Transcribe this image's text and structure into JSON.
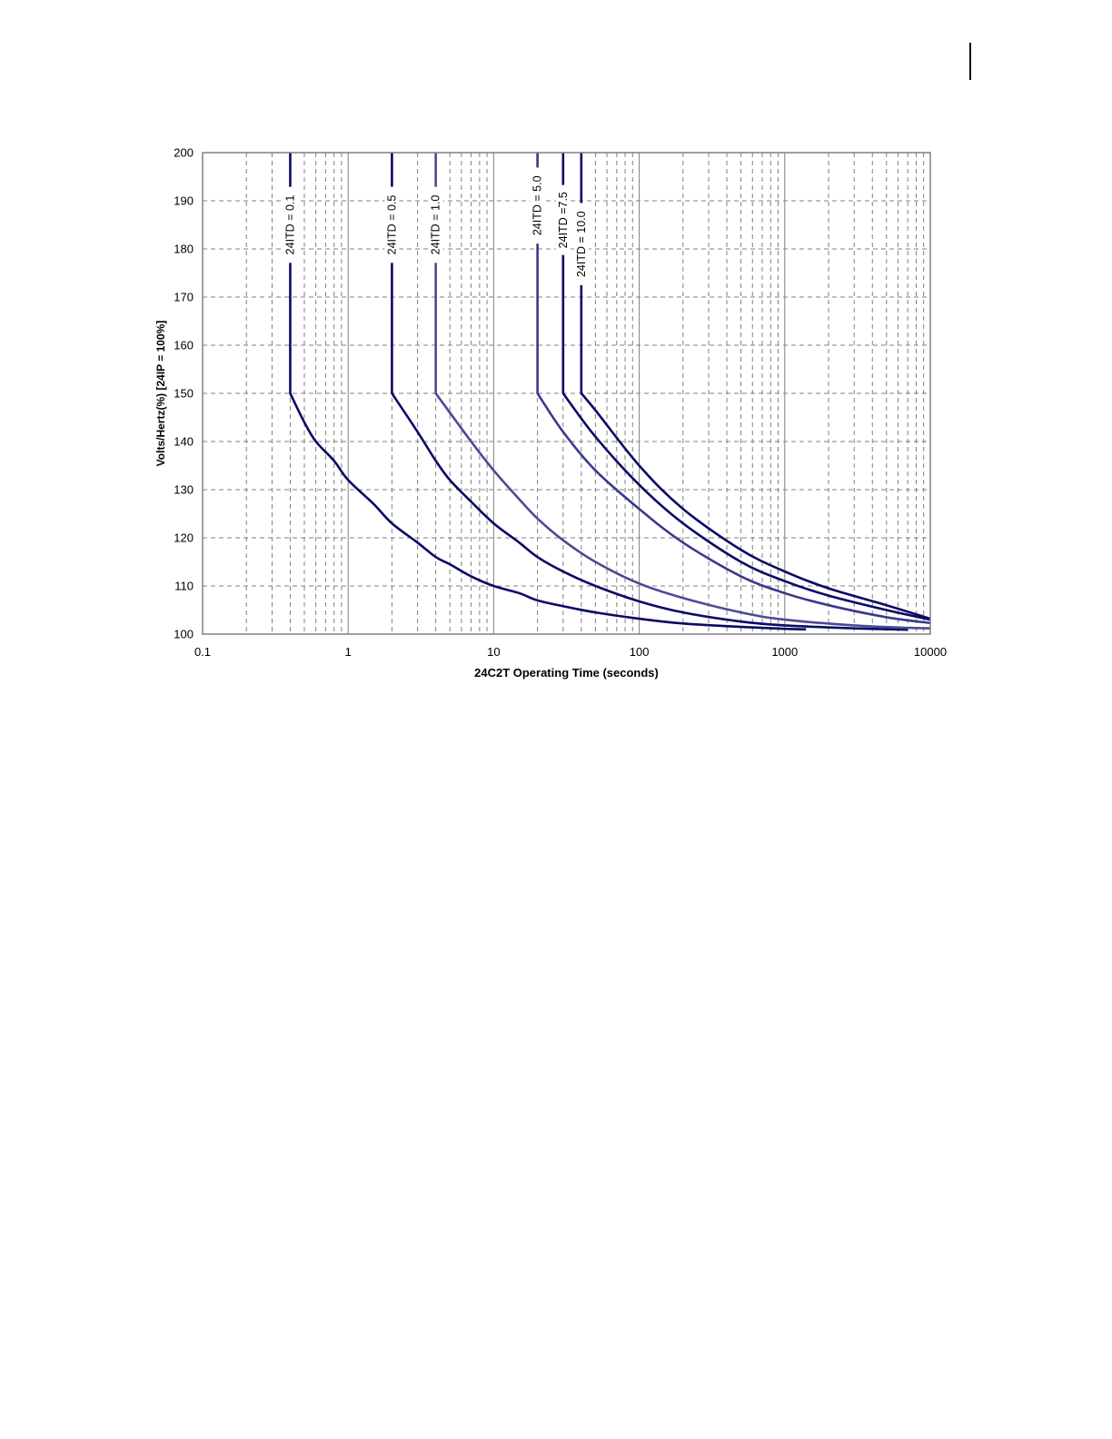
{
  "chart_data": {
    "type": "line",
    "x_scale": "log",
    "xlim": [
      0.1,
      10000
    ],
    "ylim": [
      100,
      200
    ],
    "grid": true,
    "xlabel": "24C2T Operating Time (seconds)",
    "ylabel": "Volts/Hertz(%)  [24IP = 100%]",
    "x_ticks": [
      "0.1",
      "1",
      "10",
      "100",
      "1000",
      "10000"
    ],
    "y_ticks": [
      "100",
      "110",
      "120",
      "130",
      "140",
      "150",
      "160",
      "170",
      "180",
      "190",
      "200"
    ],
    "colors": {
      "curve_dark": "#0a0a66",
      "curve_mid": "#3a3a8c",
      "curve_light": "#4a4a96",
      "grid": "#808080",
      "frame": "#808080"
    },
    "series": [
      {
        "name": "24ITD = 0.1",
        "color": "#0a0a66",
        "points": [
          [
            0.4,
            200
          ],
          [
            0.4,
            150
          ],
          [
            0.5,
            144
          ],
          [
            0.6,
            140
          ],
          [
            0.8,
            136
          ],
          [
            1,
            132
          ],
          [
            1.5,
            127
          ],
          [
            2,
            123
          ],
          [
            3,
            119
          ],
          [
            4,
            116
          ],
          [
            5,
            114.5
          ],
          [
            7,
            112
          ],
          [
            10,
            110
          ],
          [
            15,
            108.5
          ],
          [
            20,
            107
          ],
          [
            30,
            105.8
          ],
          [
            50,
            104.5
          ],
          [
            100,
            103.2
          ],
          [
            200,
            102.2
          ],
          [
            500,
            101.5
          ],
          [
            1000,
            101.1
          ],
          [
            1400,
            101
          ]
        ],
        "label_text": "24ITD = 0.1"
      },
      {
        "name": "24ITD = 0.5",
        "color": "#0a0a66",
        "points": [
          [
            2,
            200
          ],
          [
            2,
            150
          ],
          [
            3,
            142
          ],
          [
            4,
            136
          ],
          [
            5,
            132
          ],
          [
            7,
            127.5
          ],
          [
            10,
            123
          ],
          [
            15,
            119
          ],
          [
            20,
            116
          ],
          [
            30,
            113
          ],
          [
            50,
            110
          ],
          [
            100,
            106.8
          ],
          [
            200,
            104.5
          ],
          [
            500,
            102.6
          ],
          [
            1000,
            101.8
          ],
          [
            3000,
            101.2
          ],
          [
            7000,
            100.9
          ]
        ],
        "label_text": "24ITD = 0.5"
      },
      {
        "name": "24ITD = 1.0",
        "color": "#4a4a96",
        "points": [
          [
            4,
            200
          ],
          [
            4,
            150
          ],
          [
            5,
            146
          ],
          [
            7,
            140
          ],
          [
            10,
            134
          ],
          [
            15,
            128
          ],
          [
            20,
            124
          ],
          [
            30,
            119.5
          ],
          [
            50,
            115
          ],
          [
            100,
            110.5
          ],
          [
            200,
            107.5
          ],
          [
            500,
            104.5
          ],
          [
            1000,
            103
          ],
          [
            3000,
            101.8
          ],
          [
            7000,
            101.3
          ],
          [
            10000,
            101.2
          ]
        ],
        "label_text": "24ITD = 1.0"
      },
      {
        "name": "24ITD = 5.0",
        "color": "#3a3a8c",
        "points": [
          [
            20,
            200
          ],
          [
            20,
            150
          ],
          [
            30,
            142
          ],
          [
            50,
            134
          ],
          [
            100,
            126
          ],
          [
            200,
            119
          ],
          [
            500,
            112
          ],
          [
            1000,
            108.5
          ],
          [
            2000,
            106
          ],
          [
            5000,
            103.5
          ],
          [
            10000,
            102.3
          ]
        ],
        "label_text": "24ITD = 5.0"
      },
      {
        "name": "24ITD =7.5",
        "color": "#0a0a66",
        "points": [
          [
            30,
            200
          ],
          [
            30,
            150
          ],
          [
            50,
            141
          ],
          [
            100,
            131
          ],
          [
            200,
            123
          ],
          [
            500,
            115
          ],
          [
            1000,
            111
          ],
          [
            2000,
            108
          ],
          [
            5000,
            105
          ],
          [
            10000,
            103
          ]
        ],
        "label_text": "24ITD =7.5"
      },
      {
        "name": "24ITD = 10.0",
        "color": "#0a0a66",
        "points": [
          [
            40,
            200
          ],
          [
            40,
            150
          ],
          [
            50,
            146.5
          ],
          [
            100,
            135
          ],
          [
            200,
            126
          ],
          [
            500,
            117.5
          ],
          [
            1000,
            113
          ],
          [
            2000,
            109.5
          ],
          [
            5000,
            106
          ],
          [
            10000,
            103.2
          ]
        ],
        "label_text": "24ITD = 10.0"
      }
    ]
  }
}
